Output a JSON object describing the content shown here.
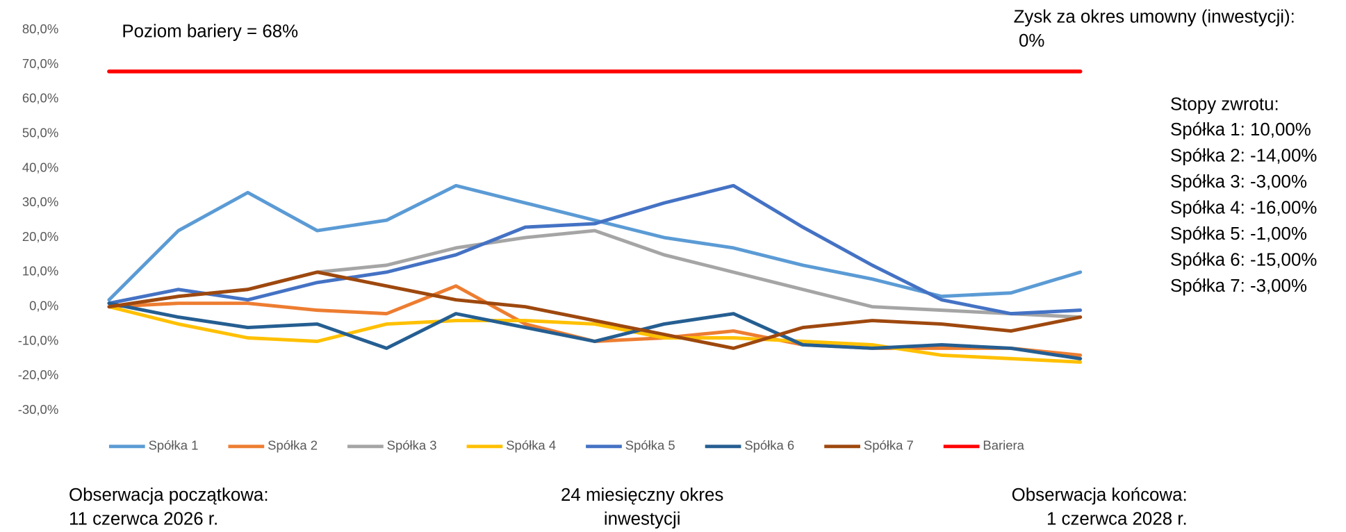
{
  "chart_data": {
    "type": "line",
    "categories": [
      null,
      null,
      null,
      null,
      null,
      null,
      null,
      null,
      null,
      null,
      null,
      null,
      null,
      null,
      null
    ],
    "series": [
      {
        "name": "Spółka 1",
        "color": "#5B9BD5",
        "values": [
          2,
          22,
          33,
          22,
          25,
          35,
          30,
          25,
          20,
          17,
          12,
          8,
          3,
          4,
          10
        ]
      },
      {
        "name": "Spółka 2",
        "color": "#ED7D31",
        "values": [
          0,
          1,
          1,
          -1,
          -2,
          6,
          -5,
          -10,
          -9,
          -7,
          -11,
          -12,
          -12,
          -12,
          -14
        ]
      },
      {
        "name": "Spółka 3",
        "color": "#A5A5A5",
        "values": [
          0,
          3,
          5,
          10,
          12,
          17,
          20,
          22,
          15,
          10,
          5,
          0,
          -1,
          -2,
          -3
        ]
      },
      {
        "name": "Spółka 4",
        "color": "#FFC000",
        "values": [
          0,
          -5,
          -9,
          -10,
          -5,
          -4,
          -4,
          -5,
          -9,
          -9,
          -10,
          -11,
          -14,
          -15,
          -16
        ]
      },
      {
        "name": "Spółka 5",
        "color": "#4472C4",
        "values": [
          1,
          5,
          2,
          7,
          10,
          15,
          23,
          24,
          30,
          35,
          23,
          12,
          2,
          -2,
          -1
        ]
      },
      {
        "name": "Spółka 6",
        "color": "#255E91",
        "values": [
          1,
          -3,
          -6,
          -5,
          -12,
          -2,
          -6,
          -10,
          -5,
          -2,
          -11,
          -12,
          -11,
          -12,
          -15
        ]
      },
      {
        "name": "Spółka 7",
        "color": "#9E480E",
        "values": [
          0,
          3,
          5,
          10,
          6,
          2,
          0,
          -4,
          -8,
          -12,
          -6,
          -4,
          -5,
          -7,
          -3
        ]
      },
      {
        "name": "Bariera",
        "color": "#FF0000",
        "values": [
          68,
          68,
          68,
          68,
          68,
          68,
          68,
          68,
          68,
          68,
          68,
          68,
          68,
          68,
          68
        ]
      }
    ],
    "ylim": [
      -30,
      80
    ],
    "yticks": [
      {
        "value": -30,
        "label": "-30,0%"
      },
      {
        "value": -20,
        "label": "-20,0%"
      },
      {
        "value": -10,
        "label": "-10,0%"
      },
      {
        "value": 0,
        "label": "0,0%"
      },
      {
        "value": 10,
        "label": "10,0%"
      },
      {
        "value": 20,
        "label": "20,0%"
      },
      {
        "value": 30,
        "label": "30,0%"
      },
      {
        "value": 40,
        "label": "40,0%"
      },
      {
        "value": 50,
        "label": "50,0%"
      },
      {
        "value": 60,
        "label": "60,0%"
      },
      {
        "value": 70,
        "label": "70,0%"
      },
      {
        "value": 80,
        "label": "80,0%"
      }
    ],
    "grid": false,
    "legend": "bottom",
    "annotations": {
      "barrier": "Poziom bariery = 68%",
      "profit_title": "Zysk za okres umowny (inwestycji):",
      "profit_value": "0%",
      "returns_title": "Stopy zwrotu:",
      "returns": [
        "Spółka 1: 10,00%",
        "Spółka 2: -14,00%",
        "Spółka 3: -3,00%",
        "Spółka 4: -16,00%",
        "Spółka 5: -1,00%",
        "Spółka 6: -15,00%",
        "Spółka 7: -3,00%"
      ],
      "start": [
        "Obserwacja początkowa:",
        "11 czerwca 2026 r."
      ],
      "period": [
        "24 miesięczny okres",
        "inwestycji"
      ],
      "end": [
        "Obserwacja  końcowa:",
        "1 czerwca 2028 r."
      ]
    }
  }
}
